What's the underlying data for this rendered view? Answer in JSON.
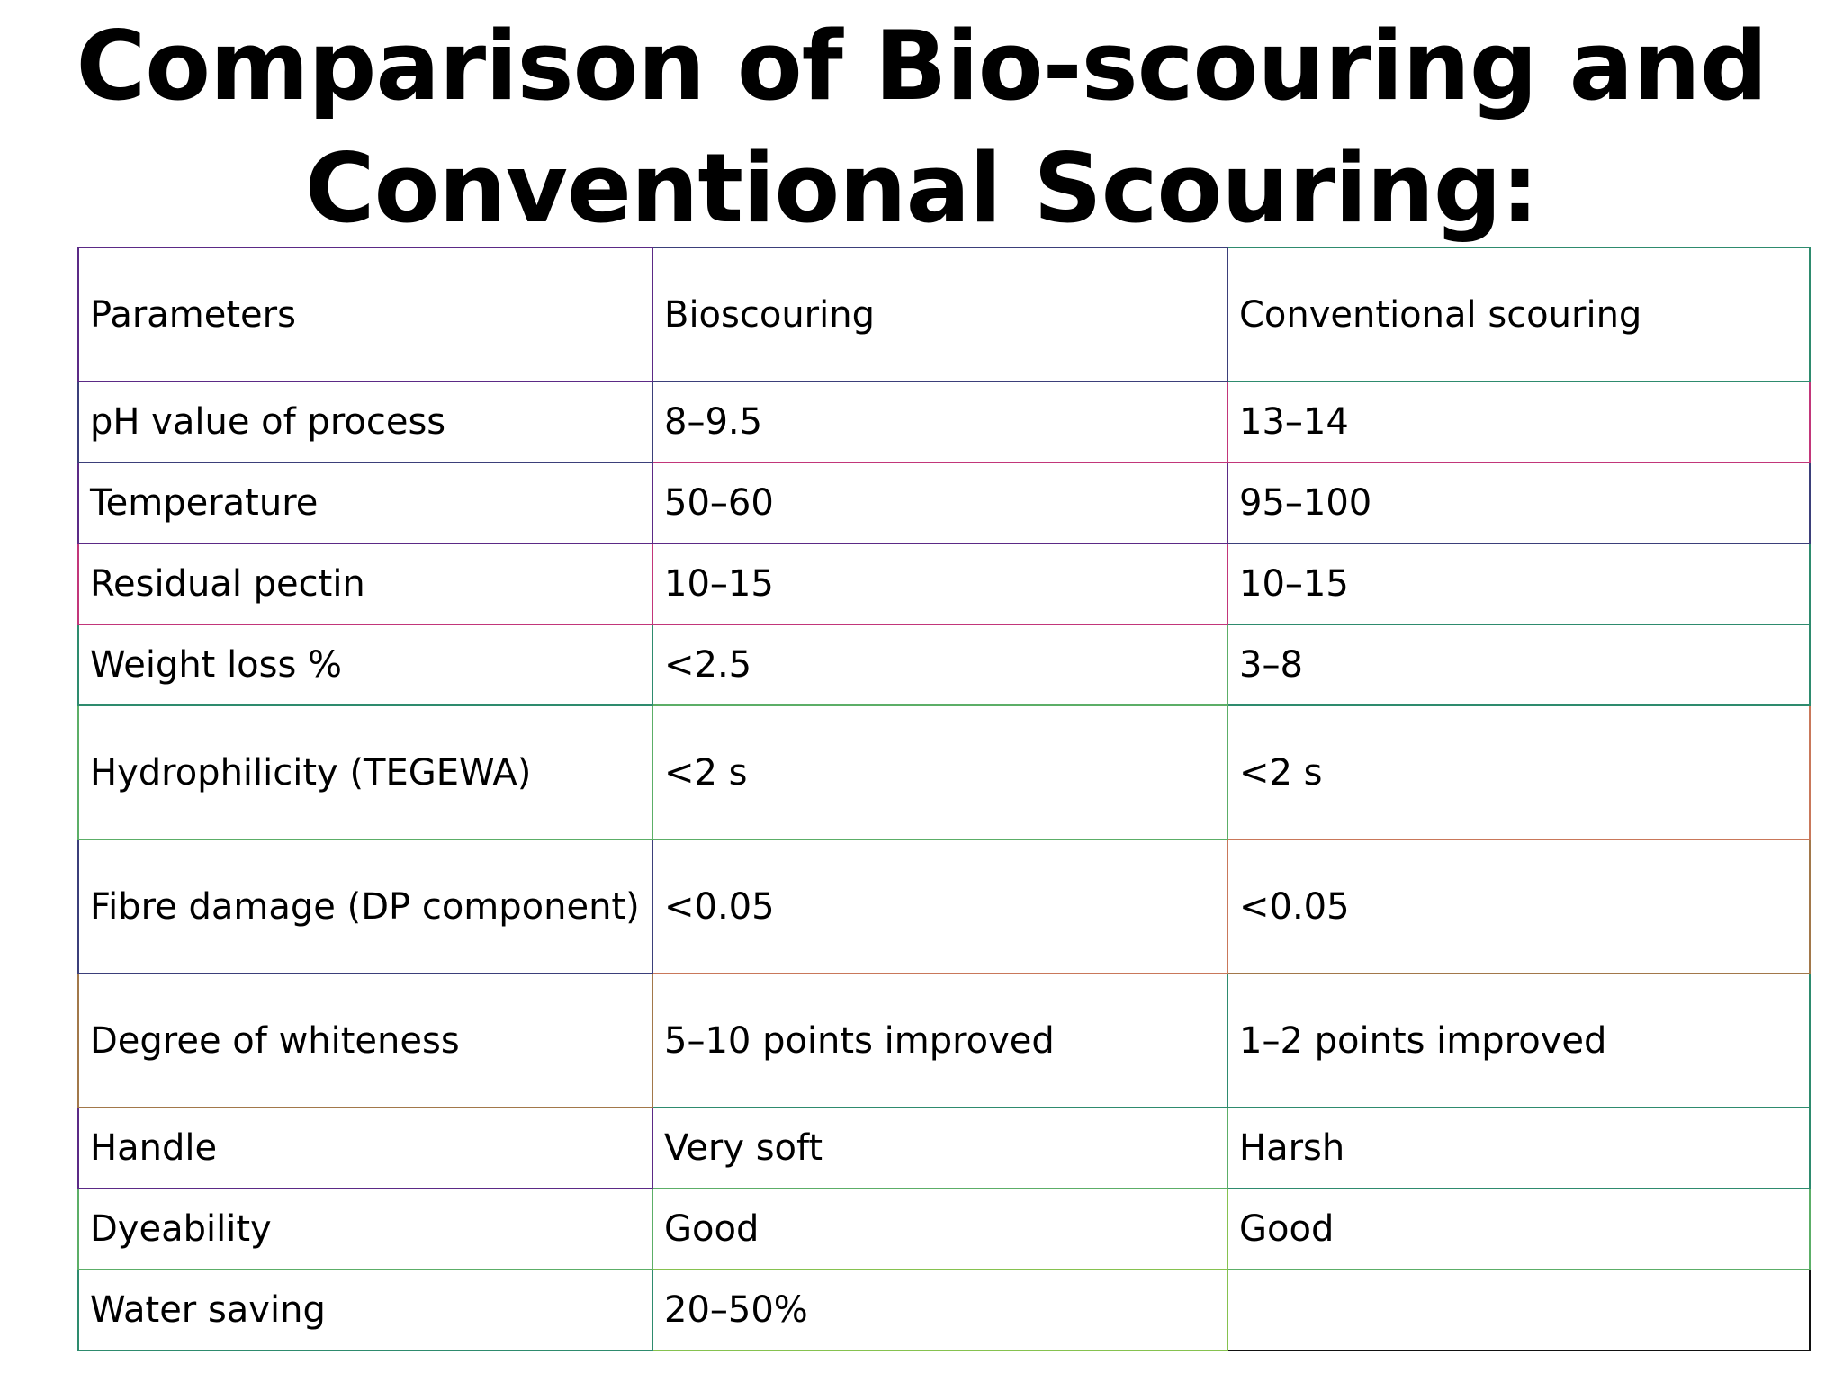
{
  "title": {
    "line1": "Comparison of Bio-scouring and",
    "line2": "Conventional Scouring:"
  },
  "table": {
    "headers": [
      "Parameters",
      "Bioscouring",
      "Conventional scouring"
    ],
    "rows": [
      [
        "pH value of process",
        "8–9.5",
        "13–14"
      ],
      [
        "Temperature",
        "50–60",
        "95–100"
      ],
      [
        "Residual pectin",
        "10–15",
        "10–15"
      ],
      [
        "Weight loss %",
        "<2.5",
        "3–8"
      ],
      [
        "Hydrophilicity (TEGEWA)",
        "<2 s",
        "<2 s"
      ],
      [
        "Fibre damage (DP component)",
        "<0.05",
        "<0.05"
      ],
      [
        "Degree of whiteness",
        "5–10 points improved",
        "1–2 points improved"
      ],
      [
        "Handle",
        "Very soft",
        "Harsh"
      ],
      [
        "Dyeability",
        "Good",
        "Good"
      ],
      [
        "Water saving",
        "20–50%",
        ""
      ]
    ]
  }
}
